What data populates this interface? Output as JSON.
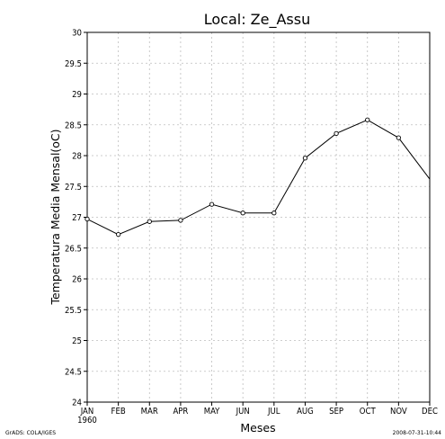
{
  "chart_data": {
    "type": "line",
    "title": "Local: Ze_Assu",
    "xlabel": "Meses",
    "ylabel": "Temperatura Media Mensal(oC)",
    "categories": [
      "JAN",
      "FEB",
      "MAR",
      "APR",
      "MAY",
      "JUN",
      "JUL",
      "AUG",
      "SEP",
      "OCT",
      "NOV",
      "DEC"
    ],
    "year_label": "1960",
    "series": [
      {
        "values": [
          26.97,
          26.72,
          26.93,
          26.95,
          27.21,
          27.07,
          27.07,
          27.96,
          28.36,
          28.58,
          28.29,
          27.62
        ]
      }
    ],
    "ylim": [
      24,
      30
    ],
    "yticks": [
      24,
      24.5,
      25,
      25.5,
      26,
      26.5,
      27,
      27.5,
      28,
      28.5,
      29,
      29.5,
      30
    ],
    "ytick_labels": [
      "24",
      "24.5",
      "25",
      "25.5",
      "26",
      "26.5",
      "27",
      "27.5",
      "28",
      "28.5",
      "29",
      "29.5",
      "30"
    ],
    "grid": true,
    "line_color": "#000000",
    "grid_color": "#bdbdbd"
  },
  "footer": {
    "left": "GrADS: COLA/IGES",
    "right": "2008-07-31-10:44"
  }
}
